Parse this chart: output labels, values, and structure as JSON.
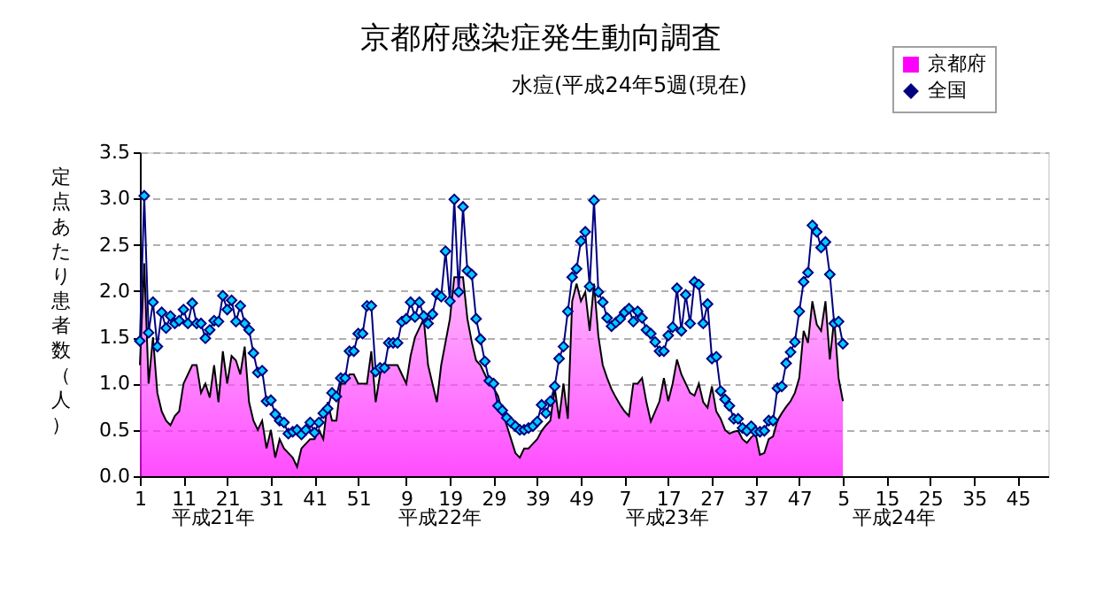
{
  "chart_data": {
    "type": "area",
    "title": "京都府感染症発生動向調査",
    "subtitle": "水痘(平成24年5週(現在)",
    "ylabel": "定点あたり患者数（人）",
    "categories": [
      "1",
      null,
      null,
      null,
      null,
      null,
      null,
      null,
      null,
      null,
      "11",
      null,
      null,
      null,
      null,
      null,
      null,
      null,
      null,
      null,
      "21",
      null,
      null,
      null,
      null,
      null,
      null,
      null,
      null,
      null,
      "31",
      null,
      null,
      null,
      null,
      null,
      null,
      null,
      null,
      null,
      "41",
      null,
      null,
      null,
      null,
      null,
      null,
      null,
      null,
      null,
      "51",
      null,
      null,
      null,
      null,
      null,
      null,
      null,
      null,
      null,
      null,
      "9",
      null,
      null,
      null,
      null,
      null,
      null,
      null,
      null,
      null,
      "19",
      null,
      null,
      null,
      null,
      null,
      null,
      null,
      null,
      null,
      "29",
      null,
      null,
      null,
      null,
      null,
      null,
      null,
      null,
      null,
      "39",
      null,
      null,
      null,
      null,
      null,
      null,
      null,
      null,
      null,
      "49",
      null,
      null,
      null,
      null,
      null,
      null,
      null,
      null,
      null,
      "7",
      null,
      null,
      null,
      null,
      null,
      null,
      null,
      null,
      null,
      "17",
      null,
      null,
      null,
      null,
      null,
      null,
      null,
      null,
      null,
      "27",
      null,
      null,
      null,
      null,
      null,
      null,
      null,
      null,
      null,
      "37",
      null,
      null,
      null,
      null,
      null,
      null,
      null,
      null,
      null,
      "47",
      null,
      null,
      null,
      null,
      null,
      null,
      null,
      null,
      null,
      "5",
      null,
      null,
      null,
      null,
      null,
      null,
      null,
      null,
      null,
      "15",
      null,
      null,
      null,
      null,
      null,
      null,
      null,
      null,
      null,
      "25",
      null,
      null,
      null,
      null,
      null,
      null,
      null,
      null,
      null,
      "35",
      null,
      null,
      null,
      null,
      null,
      null,
      null,
      null,
      null,
      "45",
      null,
      null,
      null,
      null,
      null,
      null,
      null
    ],
    "series": [
      {
        "name": "京都府",
        "color": "#ff00ff",
        "values": [
          1.2,
          2.3,
          1.0,
          1.5,
          0.9,
          0.7,
          0.6,
          0.55,
          0.65,
          0.7,
          1.0,
          1.1,
          1.2,
          1.2,
          0.9,
          1.0,
          0.85,
          1.2,
          0.8,
          1.35,
          1.0,
          1.3,
          1.25,
          1.1,
          1.4,
          0.8,
          0.6,
          0.5,
          0.6,
          0.3,
          0.5,
          0.2,
          0.4,
          0.3,
          0.25,
          0.2,
          0.1,
          0.3,
          0.35,
          0.4,
          0.4,
          0.5,
          0.4,
          0.8,
          0.6,
          0.6,
          1.0,
          1.0,
          1.1,
          1.1,
          1.0,
          1.0,
          1.0,
          1.35,
          0.8,
          1.1,
          1.2,
          1.2,
          1.2,
          1.2,
          1.1,
          1.0,
          1.3,
          1.5,
          1.6,
          1.7,
          1.2,
          1.0,
          0.8,
          1.2,
          1.45,
          1.7,
          2.15,
          2.15,
          2.15,
          1.7,
          1.45,
          1.25,
          1.2,
          1.1,
          1.0,
          0.95,
          0.87,
          0.7,
          0.55,
          0.4,
          0.25,
          0.2,
          0.3,
          0.3,
          0.35,
          0.4,
          0.49,
          0.55,
          0.6,
          0.95,
          0.62,
          1.0,
          0.62,
          1.89,
          2.08,
          1.89,
          1.99,
          1.57,
          2.08,
          1.51,
          1.2,
          1.06,
          0.94,
          0.85,
          0.77,
          0.7,
          0.65,
          1.0,
          1.0,
          1.06,
          0.8,
          0.59,
          0.7,
          0.81,
          1.06,
          0.81,
          1.0,
          1.26,
          1.1,
          1.0,
          0.9,
          0.87,
          1.0,
          0.8,
          0.74,
          0.97,
          0.7,
          0.62,
          0.5,
          0.46,
          0.48,
          0.49,
          0.4,
          0.36,
          0.42,
          0.46,
          0.23,
          0.25,
          0.4,
          0.43,
          0.6,
          0.68,
          0.75,
          0.81,
          0.9,
          1.06,
          1.57,
          1.44,
          1.89,
          1.64,
          1.57,
          1.89,
          1.26,
          1.7,
          1.06,
          0.81,
          null,
          null,
          null,
          null,
          null,
          null,
          null,
          null,
          null,
          null,
          null,
          null,
          null,
          null,
          null,
          null,
          null,
          null,
          null,
          null,
          null,
          null,
          null,
          null,
          null,
          null,
          null,
          null,
          null,
          null,
          null,
          null,
          null,
          null,
          null,
          null,
          null,
          null,
          null,
          null,
          null,
          null,
          null,
          null,
          null,
          null,
          null
        ]
      },
      {
        "name": "全国",
        "type": "line",
        "marker": "diamond",
        "color": "#000080",
        "values": [
          1.46,
          3.03,
          1.55,
          1.88,
          1.4,
          1.77,
          1.6,
          1.73,
          1.65,
          1.68,
          1.8,
          1.65,
          1.87,
          1.65,
          1.65,
          1.49,
          1.58,
          1.68,
          1.67,
          1.95,
          1.8,
          1.9,
          1.67,
          1.84,
          1.65,
          1.58,
          1.33,
          1.12,
          1.14,
          0.81,
          0.82,
          0.67,
          0.6,
          0.58,
          0.46,
          0.48,
          0.5,
          0.45,
          0.5,
          0.58,
          0.47,
          0.58,
          0.68,
          0.73,
          0.9,
          0.86,
          1.06,
          1.06,
          1.35,
          1.35,
          1.54,
          1.54,
          1.84,
          1.84,
          1.13,
          1.17,
          1.17,
          1.44,
          1.44,
          1.44,
          1.67,
          1.7,
          1.88,
          1.72,
          1.88,
          1.73,
          1.65,
          1.75,
          1.97,
          1.94,
          2.43,
          1.89,
          2.99,
          1.99,
          2.91,
          2.22,
          2.18,
          1.7,
          1.48,
          1.24,
          1.03,
          1.0,
          0.76,
          0.71,
          0.63,
          0.58,
          0.54,
          0.5,
          0.5,
          0.52,
          0.54,
          0.59,
          0.77,
          0.68,
          0.81,
          0.97,
          1.27,
          1.4,
          1.78,
          2.15,
          2.24,
          2.54,
          2.64,
          2.05,
          2.98,
          1.99,
          1.88,
          1.71,
          1.62,
          1.66,
          1.7,
          1.77,
          1.81,
          1.67,
          1.78,
          1.71,
          1.58,
          1.54,
          1.45,
          1.35,
          1.35,
          1.52,
          1.61,
          2.03,
          1.57,
          1.96,
          1.65,
          2.1,
          2.07,
          1.65,
          1.86,
          1.27,
          1.29,
          0.92,
          0.83,
          0.76,
          0.62,
          0.62,
          0.52,
          0.49,
          0.54,
          0.48,
          0.48,
          0.49,
          0.6,
          0.6,
          0.95,
          0.97,
          1.22,
          1.34,
          1.45,
          1.78,
          2.1,
          2.2,
          2.71,
          2.64,
          2.47,
          2.53,
          2.18,
          1.65,
          1.67,
          1.43,
          null,
          null,
          null,
          null,
          null,
          null,
          null,
          null,
          null,
          null,
          null,
          null,
          null,
          null,
          null,
          null,
          null,
          null,
          null,
          null,
          null,
          null,
          null,
          null,
          null,
          null,
          null,
          null,
          null,
          null,
          null,
          null,
          null,
          null,
          null,
          null,
          null,
          null,
          null,
          null,
          null,
          null,
          null,
          null,
          null,
          null,
          null
        ]
      }
    ],
    "ylim": [
      0,
      3.5
    ],
    "yticks": [
      {
        "value": 0,
        "label": "0.0"
      },
      0.5,
      {
        "value": 1,
        "label": "1.0"
      },
      1.5,
      {
        "value": 2,
        "label": "2.0"
      },
      2.5,
      {
        "value": 3,
        "label": "3.0"
      },
      3.5
    ],
    "grid": "y",
    "legend": "top right",
    "line_style": "solid",
    "annotations": [
      "平成21年",
      "平成22年",
      "平成23年",
      "平成24年"
    ]
  }
}
